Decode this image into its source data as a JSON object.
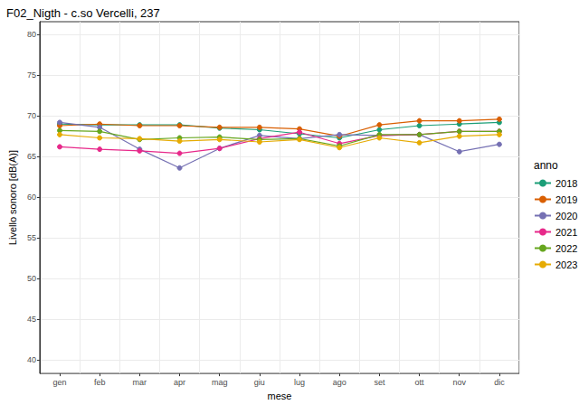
{
  "chart_data": {
    "type": "line",
    "title": "F02_Nigth - c.so Vercelli, 237",
    "x_label": "mese",
    "y_label": "Livello sonoro [dB(A)]",
    "legend_title": "anno",
    "categories": [
      "gen",
      "feb",
      "mar",
      "apr",
      "mag",
      "giu",
      "lug",
      "ago",
      "set",
      "ott",
      "nov",
      "dic"
    ],
    "series": [
      {
        "name": "2018",
        "color": "#1b9e77",
        "values": [
          69.0,
          68.9,
          68.9,
          68.9,
          68.5,
          68.3,
          67.8,
          67.3,
          68.3,
          68.8,
          69.0,
          69.2
        ]
      },
      {
        "name": "2019",
        "color": "#d95f02",
        "values": [
          68.8,
          69.0,
          68.8,
          68.8,
          68.6,
          68.6,
          68.4,
          67.5,
          68.9,
          69.4,
          69.4,
          69.6
        ]
      },
      {
        "name": "2020",
        "color": "#7570b3",
        "values": [
          69.2,
          68.6,
          65.9,
          63.6,
          66.0,
          67.6,
          67.2,
          67.7,
          67.6,
          67.7,
          65.6,
          66.5
        ]
      },
      {
        "name": "2021",
        "color": "#e7298a",
        "values": [
          66.2,
          65.9,
          65.7,
          65.4,
          66.0,
          67.2,
          68.0,
          66.6,
          67.6,
          67.7,
          68.1,
          68.1
        ]
      },
      {
        "name": "2022",
        "color": "#66a61e",
        "values": [
          68.2,
          68.1,
          67.1,
          67.3,
          67.4,
          67.1,
          67.2,
          66.3,
          67.7,
          67.7,
          68.1,
          68.1
        ]
      },
      {
        "name": "2023",
        "color": "#e6ab02",
        "values": [
          67.7,
          67.3,
          67.2,
          66.9,
          67.1,
          66.8,
          67.1,
          66.1,
          67.3,
          66.7,
          67.5,
          67.7
        ]
      }
    ],
    "ylim": [
      38.3,
      81.6
    ],
    "yticks": [
      40,
      45,
      50,
      55,
      60,
      65,
      70,
      75,
      80
    ],
    "grid": true,
    "legend": "right",
    "marker": "circle"
  }
}
